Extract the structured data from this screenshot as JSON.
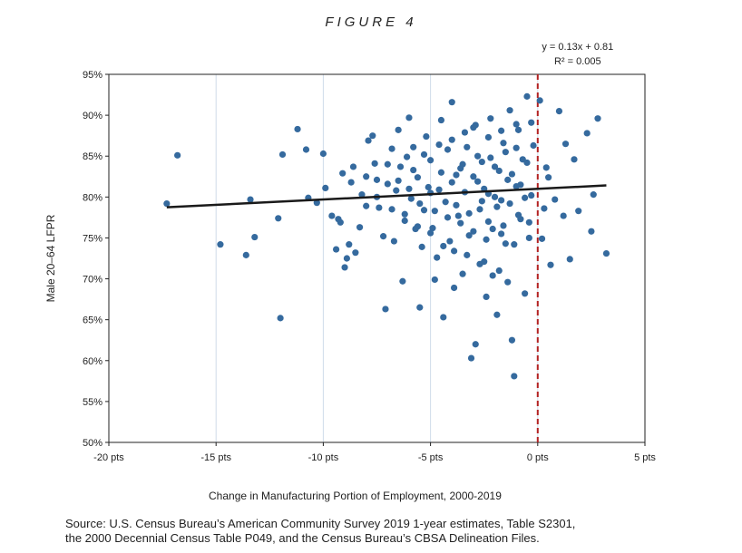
{
  "figure_title": "FIGURE 4",
  "source": [
    "Source: U.S. Census Bureau’s American Community Survey 2019 1-year estimates, Table S2301,",
    "the 2000 Decennial Census Table P049, and the Census Bureau’s CBSA Delineation Files."
  ],
  "colors": {
    "points": "#356a9e",
    "trend": "#1a1a1a",
    "ref_line": "#b22222",
    "grid": "#cfdcea"
  },
  "chart_data": {
    "type": "scatter",
    "xlabel": "Change in Manufacturing Portion of Employment, 2000-2019",
    "ylabel": "Male 20–64 LFPR",
    "xlim": [
      -20,
      5
    ],
    "ylim": [
      50,
      95
    ],
    "x_ticks": [
      -20,
      -15,
      -10,
      -5,
      0,
      5
    ],
    "x_tick_labels": [
      "-20 pts",
      "-15 pts",
      "-10 pts",
      "-5 pts",
      "0 pts",
      "5 pts"
    ],
    "y_ticks": [
      50,
      55,
      60,
      65,
      70,
      75,
      80,
      85,
      90,
      95
    ],
    "y_tick_labels": [
      "50%",
      "55%",
      "60%",
      "65%",
      "70%",
      "75%",
      "80%",
      "85%",
      "90%",
      "95%"
    ],
    "grid": "vertical",
    "trendline": {
      "slope": 0.13,
      "intercept": 0.81,
      "x_range": [
        -17.3,
        3.2
      ],
      "label_equation": "y = 0.13x + 0.81",
      "label_r2": "R² = 0.005"
    },
    "reference_line": {
      "x": 0,
      "style": "dashed"
    },
    "points": [
      [
        -17.3,
        79.2
      ],
      [
        -16.8,
        85.1
      ],
      [
        -14.8,
        74.2
      ],
      [
        -13.6,
        72.9
      ],
      [
        -13.4,
        79.7
      ],
      [
        -13.2,
        75.1
      ],
      [
        -12.1,
        77.4
      ],
      [
        -12.0,
        65.2
      ],
      [
        -11.9,
        85.2
      ],
      [
        -11.2,
        88.3
      ],
      [
        -10.8,
        85.8
      ],
      [
        -10.7,
        79.9
      ],
      [
        -10.3,
        79.3
      ],
      [
        -10.0,
        85.3
      ],
      [
        -9.9,
        81.1
      ],
      [
        -9.6,
        77.7
      ],
      [
        -9.4,
        73.6
      ],
      [
        -9.3,
        77.3
      ],
      [
        -9.2,
        76.9
      ],
      [
        -9.1,
        82.9
      ],
      [
        -9.0,
        71.4
      ],
      [
        -8.9,
        72.5
      ],
      [
        -8.8,
        74.2
      ],
      [
        -8.7,
        81.8
      ],
      [
        -8.6,
        83.7
      ],
      [
        -8.5,
        73.2
      ],
      [
        -8.3,
        76.3
      ],
      [
        -8.2,
        80.3
      ],
      [
        -8.0,
        78.9
      ],
      [
        -7.9,
        86.9
      ],
      [
        -7.7,
        87.5
      ],
      [
        -7.6,
        84.1
      ],
      [
        -7.5,
        82.1
      ],
      [
        -7.4,
        78.7
      ],
      [
        -7.2,
        75.2
      ],
      [
        -7.1,
        66.3
      ],
      [
        -7.0,
        81.6
      ],
      [
        -6.8,
        85.9
      ],
      [
        -6.7,
        74.6
      ],
      [
        -6.6,
        80.8
      ],
      [
        -6.5,
        88.2
      ],
      [
        -6.4,
        83.7
      ],
      [
        -6.3,
        69.7
      ],
      [
        -6.2,
        77.1
      ],
      [
        -6.1,
        84.9
      ],
      [
        -6.0,
        89.7
      ],
      [
        -5.9,
        79.8
      ],
      [
        -5.8,
        86.1
      ],
      [
        -5.7,
        76.1
      ],
      [
        -5.6,
        82.4
      ],
      [
        -5.5,
        66.5
      ],
      [
        -5.4,
        73.9
      ],
      [
        -5.3,
        78.4
      ],
      [
        -5.2,
        87.4
      ],
      [
        -5.1,
        81.2
      ],
      [
        -5.0,
        84.5
      ],
      [
        -4.9,
        76.2
      ],
      [
        -4.8,
        69.9
      ],
      [
        -4.7,
        72.6
      ],
      [
        -4.6,
        80.9
      ],
      [
        -4.5,
        89.4
      ],
      [
        -4.4,
        65.3
      ],
      [
        -4.3,
        79.4
      ],
      [
        -4.2,
        85.8
      ],
      [
        -4.1,
        74.6
      ],
      [
        -4.0,
        91.6
      ],
      [
        -3.9,
        68.9
      ],
      [
        -3.8,
        82.7
      ],
      [
        -3.7,
        77.7
      ],
      [
        -3.6,
        83.5
      ],
      [
        -3.5,
        70.6
      ],
      [
        -3.4,
        80.6
      ],
      [
        -3.3,
        86.1
      ],
      [
        -3.2,
        75.3
      ],
      [
        -3.1,
        60.3
      ],
      [
        -3.0,
        88.5
      ],
      [
        -2.9,
        62.0
      ],
      [
        -2.8,
        81.9
      ],
      [
        -2.7,
        78.5
      ],
      [
        -2.6,
        84.3
      ],
      [
        -2.5,
        72.1
      ],
      [
        -2.4,
        67.8
      ],
      [
        -2.3,
        80.4
      ],
      [
        -2.2,
        89.6
      ],
      [
        -2.1,
        76.1
      ],
      [
        -2.0,
        83.7
      ],
      [
        -1.9,
        65.6
      ],
      [
        -1.8,
        71.0
      ],
      [
        -1.7,
        79.6
      ],
      [
        -1.6,
        86.6
      ],
      [
        -1.5,
        74.3
      ],
      [
        -1.4,
        82.1
      ],
      [
        -1.3,
        90.6
      ],
      [
        -1.2,
        62.5
      ],
      [
        -1.1,
        58.1
      ],
      [
        -1.0,
        81.3
      ],
      [
        -0.9,
        88.2
      ],
      [
        -0.8,
        77.3
      ],
      [
        -0.7,
        84.6
      ],
      [
        -0.6,
        68.2
      ],
      [
        -0.5,
        92.3
      ],
      [
        -0.4,
        75.0
      ],
      [
        -0.3,
        80.2
      ],
      [
        -0.2,
        86.3
      ],
      [
        0.1,
        91.8
      ],
      [
        0.2,
        74.9
      ],
      [
        0.4,
        83.6
      ],
      [
        0.6,
        71.7
      ],
      [
        0.8,
        79.7
      ],
      [
        1.0,
        90.5
      ],
      [
        1.2,
        77.7
      ],
      [
        1.3,
        86.5
      ],
      [
        1.5,
        72.4
      ],
      [
        1.7,
        84.6
      ],
      [
        1.9,
        78.3
      ],
      [
        2.3,
        87.8
      ],
      [
        2.5,
        75.8
      ],
      [
        2.6,
        80.3
      ],
      [
        2.8,
        89.6
      ],
      [
        3.2,
        73.1
      ],
      [
        -3.5,
        84.0
      ],
      [
        -3.0,
        82.5
      ],
      [
        -2.8,
        85.0
      ],
      [
        -2.5,
        81.0
      ],
      [
        -2.2,
        84.8
      ],
      [
        -2.0,
        80.0
      ],
      [
        -1.8,
        83.2
      ],
      [
        -1.5,
        85.5
      ],
      [
        -1.2,
        82.8
      ],
      [
        -1.0,
        86.0
      ],
      [
        -0.8,
        81.5
      ],
      [
        -0.5,
        84.2
      ],
      [
        -4.0,
        81.8
      ],
      [
        -4.5,
        83.0
      ],
      [
        -5.0,
        80.5
      ],
      [
        -3.8,
        79.0
      ],
      [
        -3.2,
        78.0
      ],
      [
        -2.6,
        79.5
      ],
      [
        -2.3,
        77.0
      ],
      [
        -1.9,
        78.8
      ],
      [
        -1.6,
        76.5
      ],
      [
        -1.3,
        79.2
      ],
      [
        -0.9,
        77.8
      ],
      [
        -0.6,
        79.9
      ],
      [
        -6.0,
        81.0
      ],
      [
        -5.5,
        79.2
      ],
      [
        -4.8,
        78.3
      ],
      [
        -4.2,
        77.5
      ],
      [
        -3.6,
        76.8
      ],
      [
        -3.0,
        75.8
      ],
      [
        -2.4,
        74.8
      ],
      [
        -1.7,
        75.5
      ],
      [
        -1.1,
        74.2
      ],
      [
        -0.4,
        76.9
      ],
      [
        0.3,
        78.6
      ],
      [
        0.5,
        82.4
      ],
      [
        -7.0,
        84.0
      ],
      [
        -6.5,
        82.0
      ],
      [
        -5.8,
        83.3
      ],
      [
        -5.3,
        85.2
      ],
      [
        -4.6,
        86.4
      ],
      [
        -4.0,
        87.0
      ],
      [
        -3.4,
        87.9
      ],
      [
        -2.9,
        88.8
      ],
      [
        -2.3,
        87.3
      ],
      [
        -1.7,
        88.1
      ],
      [
        -1.0,
        88.9
      ],
      [
        -0.3,
        89.1
      ],
      [
        -8.0,
        82.5
      ],
      [
        -7.5,
        80.0
      ],
      [
        -6.8,
        78.5
      ],
      [
        -6.2,
        77.9
      ],
      [
        -5.6,
        76.4
      ],
      [
        -5.0,
        75.6
      ],
      [
        -4.4,
        74.0
      ],
      [
        -3.9,
        73.4
      ],
      [
        -3.3,
        72.9
      ],
      [
        -2.7,
        71.8
      ],
      [
        -2.1,
        70.4
      ],
      [
        -1.4,
        69.6
      ]
    ]
  }
}
